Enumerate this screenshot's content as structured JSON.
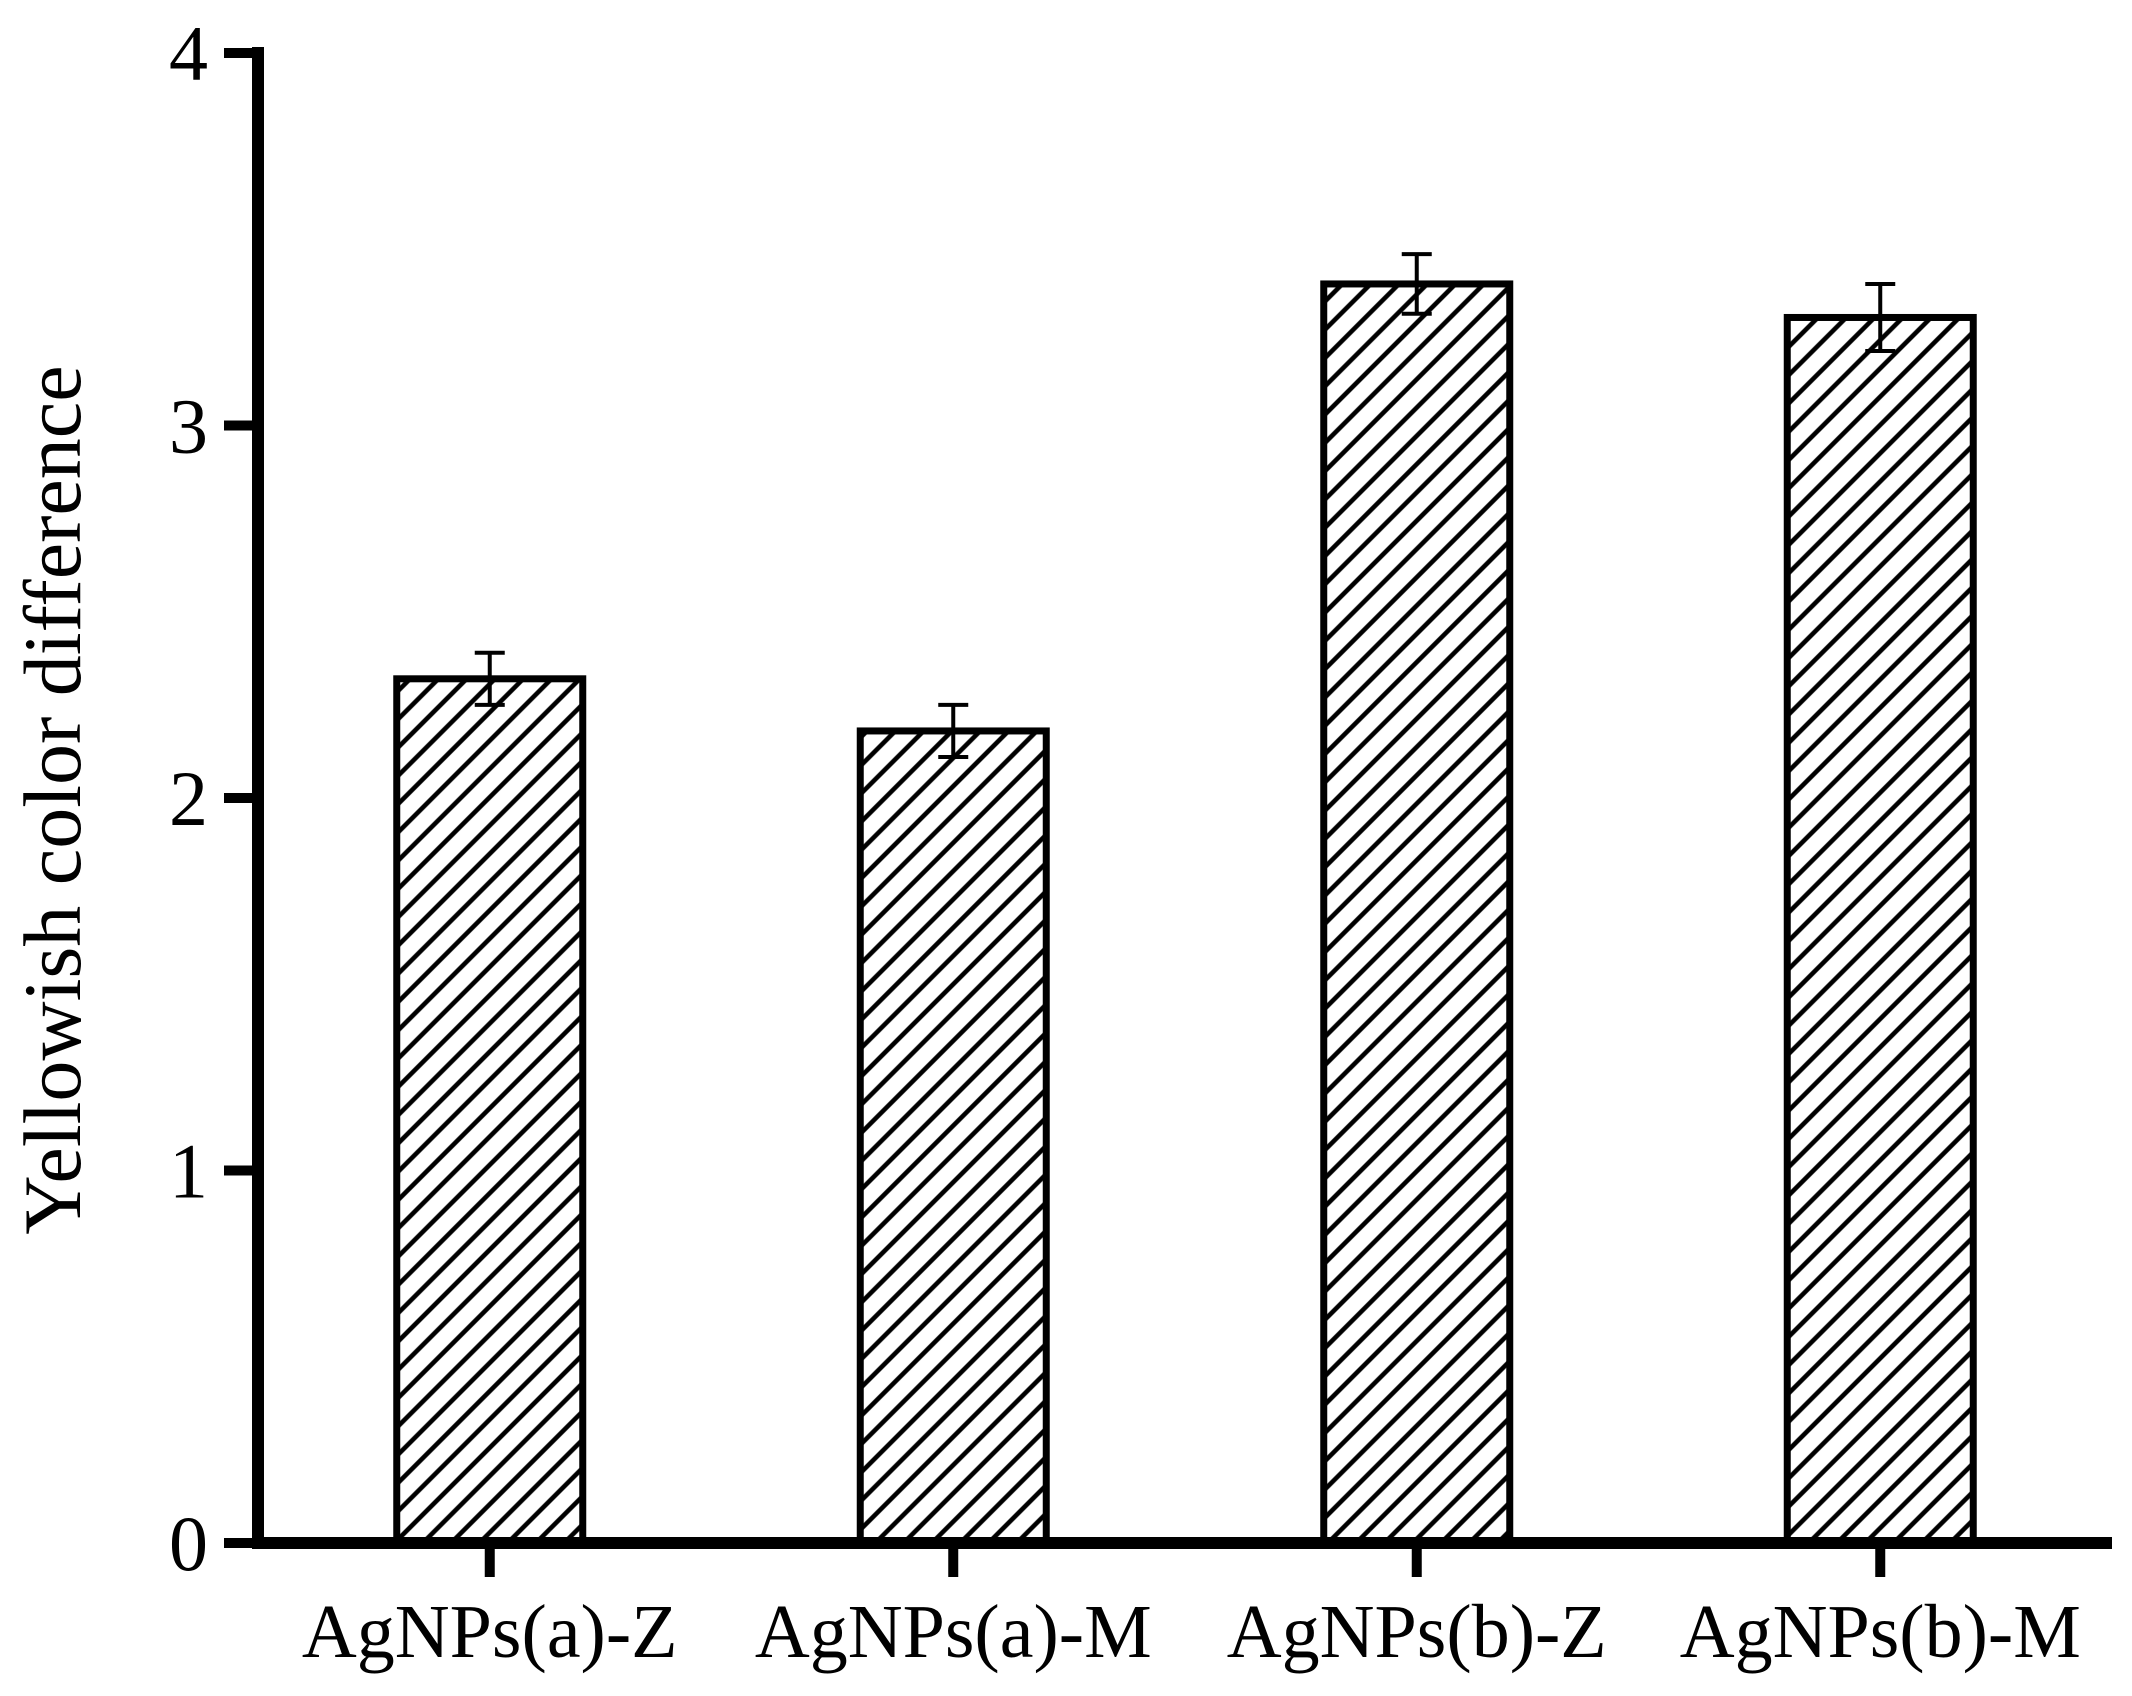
{
  "figure": {
    "background_color": "#ffffff",
    "ink_color": "#000000"
  },
  "chart_data": {
    "type": "bar",
    "title": "",
    "xlabel": "",
    "ylabel": "Yellowish color difference",
    "categories": [
      "AgNPs(a)-Z",
      "AgNPs(a)-M",
      "AgNPs(b)-Z",
      "AgNPs(b)-M"
    ],
    "values": [
      2.32,
      2.18,
      3.38,
      3.29
    ],
    "errors": [
      0.07,
      0.07,
      0.08,
      0.09
    ],
    "ylim": [
      0,
      4
    ],
    "yticks": [
      0,
      1,
      2,
      3,
      4
    ],
    "grid": false,
    "legend": null,
    "bar_style": {
      "fill": "white",
      "hatch": "diagonal-forward",
      "edge_color": "#000000",
      "hatch_color": "#000000"
    }
  }
}
